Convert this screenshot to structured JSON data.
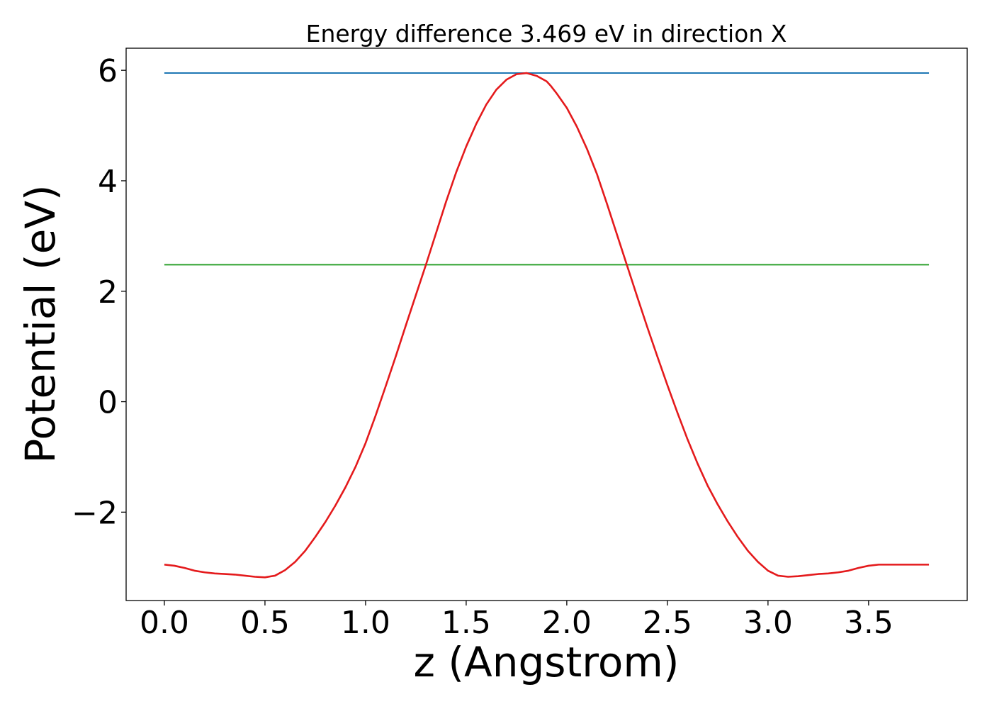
{
  "chart_data": {
    "type": "line",
    "title": "Energy difference 3.469 eV in direction X",
    "xlabel": "z (Angstrom)",
    "ylabel": "Potential (eV)",
    "xlim": [
      -0.19,
      3.99
    ],
    "ylim": [
      -3.6,
      6.4
    ],
    "x_ticks": [
      {
        "value": 0.0,
        "label": "0.0"
      },
      {
        "value": 0.5,
        "label": "0.5"
      },
      {
        "value": 1.0,
        "label": "1.0"
      },
      {
        "value": 1.5,
        "label": "1.5"
      },
      {
        "value": 2.0,
        "label": "2.0"
      },
      {
        "value": 2.5,
        "label": "2.5"
      },
      {
        "value": 3.0,
        "label": "3.0"
      },
      {
        "value": 3.5,
        "label": "3.5"
      }
    ],
    "y_ticks": [
      {
        "value": -2,
        "label": "−2"
      },
      {
        "value": 0,
        "label": "0"
      },
      {
        "value": 2,
        "label": "2"
      },
      {
        "value": 4,
        "label": "4"
      },
      {
        "value": 6,
        "label": "6"
      }
    ],
    "grid": false,
    "series": [
      {
        "color": "#1f77b4",
        "x": [
          0.0,
          3.8
        ],
        "y": [
          5.95,
          5.95
        ]
      },
      {
        "color": "#2ca02c",
        "x": [
          0.0,
          3.8
        ],
        "y": [
          2.48,
          2.48
        ]
      },
      {
        "color": "#e41a1c",
        "x": [
          0.0,
          0.05,
          0.1,
          0.15,
          0.2,
          0.25,
          0.3,
          0.35,
          0.4,
          0.45,
          0.5,
          0.55,
          0.6,
          0.65,
          0.7,
          0.75,
          0.8,
          0.85,
          0.9,
          0.95,
          1.0,
          1.05,
          1.1,
          1.15,
          1.2,
          1.25,
          1.3,
          1.35,
          1.4,
          1.45,
          1.5,
          1.55,
          1.6,
          1.65,
          1.7,
          1.75,
          1.8,
          1.85,
          1.9,
          1.92,
          1.95,
          2.0,
          2.05,
          2.1,
          2.15,
          2.2,
          2.25,
          2.3,
          2.35,
          2.4,
          2.45,
          2.5,
          2.55,
          2.6,
          2.65,
          2.7,
          2.75,
          2.8,
          2.85,
          2.9,
          2.95,
          3.0,
          3.05,
          3.1,
          3.15,
          3.2,
          3.25,
          3.3,
          3.35,
          3.4,
          3.45,
          3.5,
          3.55,
          3.6,
          3.65,
          3.7,
          3.75,
          3.8
        ],
        "y": [
          -2.95,
          -2.97,
          -3.01,
          -3.06,
          -3.09,
          -3.11,
          -3.12,
          -3.13,
          -3.15,
          -3.17,
          -3.18,
          -3.15,
          -3.05,
          -2.9,
          -2.7,
          -2.45,
          -2.18,
          -1.88,
          -1.55,
          -1.18,
          -0.75,
          -0.25,
          0.28,
          0.82,
          1.38,
          1.93,
          2.48,
          3.05,
          3.62,
          4.15,
          4.62,
          5.03,
          5.38,
          5.65,
          5.83,
          5.93,
          5.95,
          5.9,
          5.8,
          5.72,
          5.58,
          5.32,
          4.98,
          4.58,
          4.12,
          3.58,
          3.02,
          2.46,
          1.9,
          1.35,
          0.82,
          0.3,
          -0.2,
          -0.68,
          -1.12,
          -1.52,
          -1.86,
          -2.17,
          -2.45,
          -2.7,
          -2.9,
          -3.06,
          -3.15,
          -3.17,
          -3.16,
          -3.14,
          -3.12,
          -3.11,
          -3.09,
          -3.06,
          -3.01,
          -2.97,
          -2.95,
          -2.95,
          -2.95,
          -2.95,
          -2.95,
          -2.95
        ]
      }
    ]
  }
}
